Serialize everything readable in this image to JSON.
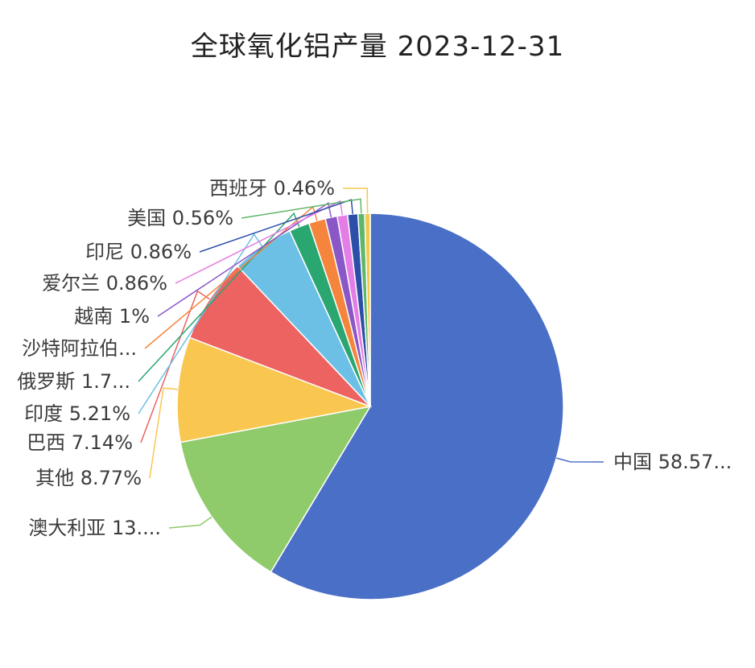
{
  "chart_data": {
    "type": "pie",
    "title": "全球氧化铝产量 2023-12-31",
    "slices": [
      {
        "name": "中国",
        "value": 58.57,
        "label": "中国 58.57...",
        "color": "#4a6fc7"
      },
      {
        "name": "澳大利亚",
        "value": 13.41,
        "label": "澳大利亚 13....",
        "color": "#8fcb6a"
      },
      {
        "name": "其他",
        "value": 8.77,
        "label": "其他 8.77%",
        "color": "#f9c74f"
      },
      {
        "name": "巴西",
        "value": 7.14,
        "label": "巴西 7.14%",
        "color": "#ec6361"
      },
      {
        "name": "印度",
        "value": 5.21,
        "label": "印度 5.21%",
        "color": "#6cc0e6"
      },
      {
        "name": "俄罗斯",
        "value": 1.7,
        "label": "俄罗斯 1.7...",
        "color": "#2aa671"
      },
      {
        "name": "沙特阿拉伯",
        "value": 1.4,
        "label": "沙特阿拉伯...",
        "color": "#f5843c"
      },
      {
        "name": "越南",
        "value": 1.0,
        "label": "越南 1%",
        "color": "#8a57c7"
      },
      {
        "name": "爱尔兰",
        "value": 0.86,
        "label": "爱尔兰 0.86%",
        "color": "#e47de5"
      },
      {
        "name": "印尼",
        "value": 0.86,
        "label": "印尼 0.86%",
        "color": "#2b4fa8"
      },
      {
        "name": "美国",
        "value": 0.56,
        "label": "美国 0.56%",
        "color": "#5fb86a"
      },
      {
        "name": "西班牙",
        "value": 0.46,
        "label": "西班牙 0.46%",
        "color": "#f3c84c"
      }
    ]
  }
}
